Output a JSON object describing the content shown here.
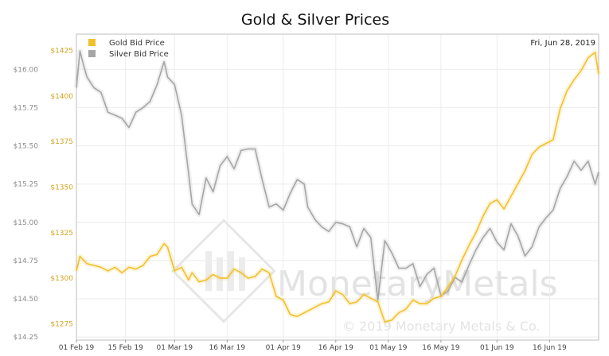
{
  "chart_data": {
    "type": "line",
    "title": "Gold & Silver Prices",
    "date_label": "Fri, Jun 28, 2019",
    "watermark": {
      "logo_text": "MonetaryMetals",
      "copyright": "© 2019 Monetary Metals & Co."
    },
    "x_tick_labels": [
      "01 Feb 19",
      "15 Feb 19",
      "01 Mar 19",
      "16 Mar 19",
      "01 Apr 19",
      "16 Apr 19",
      "01 May 19",
      "16 May 19",
      "01 Jun 19",
      "16 Jun 19"
    ],
    "x_tick_days": [
      0,
      14,
      28,
      43,
      59,
      74,
      89,
      104,
      120,
      135
    ],
    "x_range_days": [
      0,
      149
    ],
    "left_axis_silver": {
      "ticks": [
        "$14.25",
        "$14.50",
        "$14.75",
        "$15.00",
        "$15.25",
        "$15.50",
        "$15.75",
        "$16.00"
      ],
      "range": [
        14.23,
        16.23
      ]
    },
    "left_axis_gold": {
      "ticks": [
        "$1275",
        "$1300",
        "$1325",
        "$1350",
        "$1375",
        "$1400",
        "$1425"
      ],
      "range": [
        1266,
        1434
      ]
    },
    "grid": true,
    "legend_position": "top-left",
    "series": [
      {
        "name": "Gold Bid Price",
        "color": "#f2c02e",
        "axis": "gold",
        "x": [
          0,
          1,
          3,
          5,
          7,
          9,
          11,
          13,
          15,
          17,
          19,
          21,
          23,
          25,
          26,
          28,
          30,
          32,
          33,
          35,
          37,
          39,
          41,
          43,
          45,
          47,
          49,
          51,
          53,
          55,
          57,
          59,
          61,
          63,
          65,
          66,
          68,
          70,
          72,
          74,
          76,
          78,
          80,
          82,
          84,
          86,
          88,
          90,
          92,
          94,
          96,
          98,
          100,
          102,
          104,
          106,
          108,
          110,
          112,
          114,
          116,
          118,
          120,
          122,
          124,
          126,
          128,
          130,
          132,
          134,
          136,
          138,
          140,
          142,
          144,
          146,
          148,
          149
        ],
        "values": [
          1304,
          1312,
          1308,
          1307,
          1306,
          1304,
          1306,
          1303,
          1306,
          1305,
          1307,
          1312,
          1313,
          1319,
          1317,
          1304,
          1306,
          1299,
          1303,
          1298,
          1299,
          1302,
          1300,
          1300,
          1305,
          1303,
          1300,
          1301,
          1305,
          1303,
          1290,
          1288,
          1280,
          1279,
          1281,
          1282,
          1284,
          1286,
          1287,
          1293,
          1291,
          1286,
          1287,
          1291,
          1289,
          1287,
          1276,
          1277,
          1281,
          1283,
          1288,
          1286,
          1286,
          1289,
          1290,
          1295,
          1301,
          1310,
          1318,
          1325,
          1334,
          1341,
          1343,
          1338,
          1345,
          1352,
          1359,
          1368,
          1372,
          1374,
          1376,
          1393,
          1403,
          1409,
          1414,
          1421,
          1424,
          1412
        ]
      },
      {
        "name": "Silver Bid Price",
        "color": "#a6a6a6",
        "axis": "silver",
        "x": [
          0,
          1,
          2,
          3,
          5,
          7,
          9,
          11,
          13,
          15,
          17,
          19,
          21,
          23,
          25,
          26,
          28,
          30,
          32,
          33,
          35,
          37,
          39,
          41,
          43,
          45,
          47,
          49,
          51,
          53,
          55,
          57,
          59,
          61,
          63,
          65,
          66,
          68,
          70,
          72,
          74,
          76,
          78,
          80,
          82,
          84,
          86,
          88,
          90,
          92,
          94,
          96,
          98,
          100,
          102,
          104,
          106,
          108,
          110,
          112,
          114,
          116,
          118,
          120,
          122,
          124,
          126,
          128,
          130,
          132,
          134,
          136,
          138,
          140,
          142,
          144,
          146,
          148,
          149
        ],
        "values": [
          15.88,
          16.12,
          16.03,
          15.95,
          15.88,
          15.85,
          15.72,
          15.7,
          15.68,
          15.62,
          15.72,
          15.75,
          15.79,
          15.9,
          16.05,
          15.95,
          15.9,
          15.7,
          15.32,
          15.12,
          15.05,
          15.29,
          15.2,
          15.37,
          15.43,
          15.35,
          15.47,
          15.48,
          15.48,
          15.28,
          15.1,
          15.12,
          15.08,
          15.19,
          15.28,
          15.25,
          15.1,
          15.02,
          14.97,
          14.94,
          15.0,
          14.99,
          14.97,
          14.84,
          14.96,
          14.9,
          14.49,
          14.88,
          14.8,
          14.7,
          14.7,
          14.73,
          14.58,
          14.66,
          14.7,
          14.52,
          14.55,
          14.64,
          14.61,
          14.72,
          14.82,
          14.9,
          14.96,
          14.87,
          14.82,
          14.99,
          14.91,
          14.78,
          14.84,
          14.97,
          15.03,
          15.08,
          15.22,
          15.3,
          15.4,
          15.34,
          15.4,
          15.25,
          15.33
        ]
      }
    ]
  }
}
